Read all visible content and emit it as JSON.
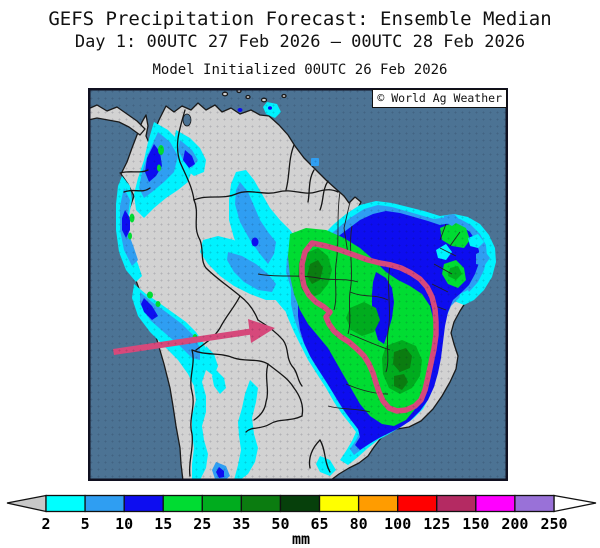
{
  "title": {
    "line1": "GEFS Precipitation Forecast: Ensemble Median",
    "line2": "Day 1: 00UTC 27 Feb 2026 — 00UTC 28 Feb 2026",
    "line3": "Model Initialized 00UTC 26 Feb 2026"
  },
  "watermark": "© World Ag Weather",
  "map": {
    "region": "South America precipitation forecast map",
    "ocean_color": "#4C7394",
    "land_color": "#D2D2D2",
    "coast_color": "#1A1A1A",
    "annotation_color": "#D6497B",
    "annotations": [
      "hand-drawn outline around central/eastern Brazil rain area",
      "arrow pointing at central Brazil"
    ]
  },
  "colorbar": {
    "unit": "mm",
    "levels": [
      "2",
      "5",
      "10",
      "15",
      "25",
      "35",
      "50",
      "65",
      "80",
      "100",
      "125",
      "150",
      "200",
      "250"
    ],
    "colors": [
      "#00FFFF",
      "#2F9EF2",
      "#0D0DF0",
      "#00DC32",
      "#00AC1E",
      "#0B7C10",
      "#06400B",
      "#FFFF00",
      "#FF9C00",
      "#FF0000",
      "#B42A62",
      "#FF00FF",
      "#9971D8"
    ],
    "below_color": "#C8C8C8",
    "above_color": "#FFFFFF",
    "outline_color": "#111111"
  }
}
